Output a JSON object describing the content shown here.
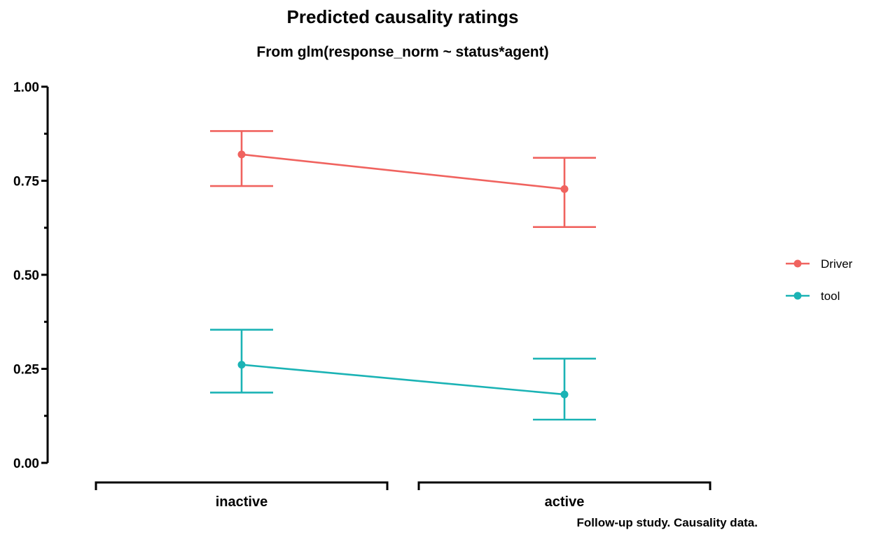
{
  "chart_data": {
    "type": "line",
    "title": "Predicted causality ratings",
    "subtitle": "From glm(response_norm ~ status*agent)",
    "caption": "Follow-up study. Causality data.",
    "xlabel": "",
    "ylabel": "",
    "categories": [
      "inactive",
      "active"
    ],
    "ylim": [
      0,
      1
    ],
    "y_ticks": [
      0.0,
      0.25,
      0.5,
      0.75,
      1.0
    ],
    "y_tick_labels": [
      "0.00",
      "0.25",
      "0.50",
      "0.75",
      "1.00"
    ],
    "grid": false,
    "legend_position": "right",
    "series": [
      {
        "name": "Driver",
        "color": "#F0635F",
        "values": [
          0.82,
          0.728
        ],
        "lower": [
          0.736,
          0.627
        ],
        "upper": [
          0.882,
          0.811
        ]
      },
      {
        "name": "tool",
        "color": "#1BB3B5",
        "values": [
          0.261,
          0.182
        ],
        "lower": [
          0.187,
          0.115
        ],
        "upper": [
          0.354,
          0.277
        ]
      }
    ]
  }
}
